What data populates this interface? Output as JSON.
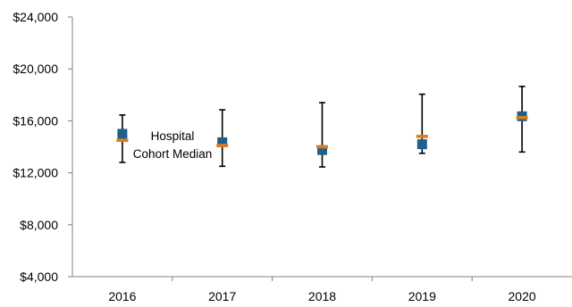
{
  "chart_data": {
    "type": "scatter",
    "categories": [
      "2016",
      "2017",
      "2018",
      "2019",
      "2020"
    ],
    "ylim": [
      4000,
      24000
    ],
    "yticks": [
      4000,
      8000,
      12000,
      16000,
      20000,
      24000
    ],
    "ytick_labels": [
      "$4,000",
      "$8,000",
      "$12,000",
      "$16,000",
      "$20,000",
      "$24,000"
    ],
    "series": [
      {
        "name": "Hospital",
        "marker": "square",
        "color": "#1f5f8b",
        "values": [
          15000,
          14350,
          13750,
          14200,
          16350
        ]
      },
      {
        "name": "Cohort Median",
        "marker": "dash",
        "color": "#e07b1a",
        "values": [
          14500,
          14100,
          14000,
          14800,
          16250
        ]
      }
    ],
    "range": {
      "low": [
        12800,
        12500,
        12450,
        13500,
        13600
      ],
      "high": [
        16450,
        16850,
        17400,
        18050,
        18650
      ]
    },
    "annotations": [
      "Hospital",
      "Cohort Median"
    ],
    "grid": false,
    "legend": "none"
  }
}
